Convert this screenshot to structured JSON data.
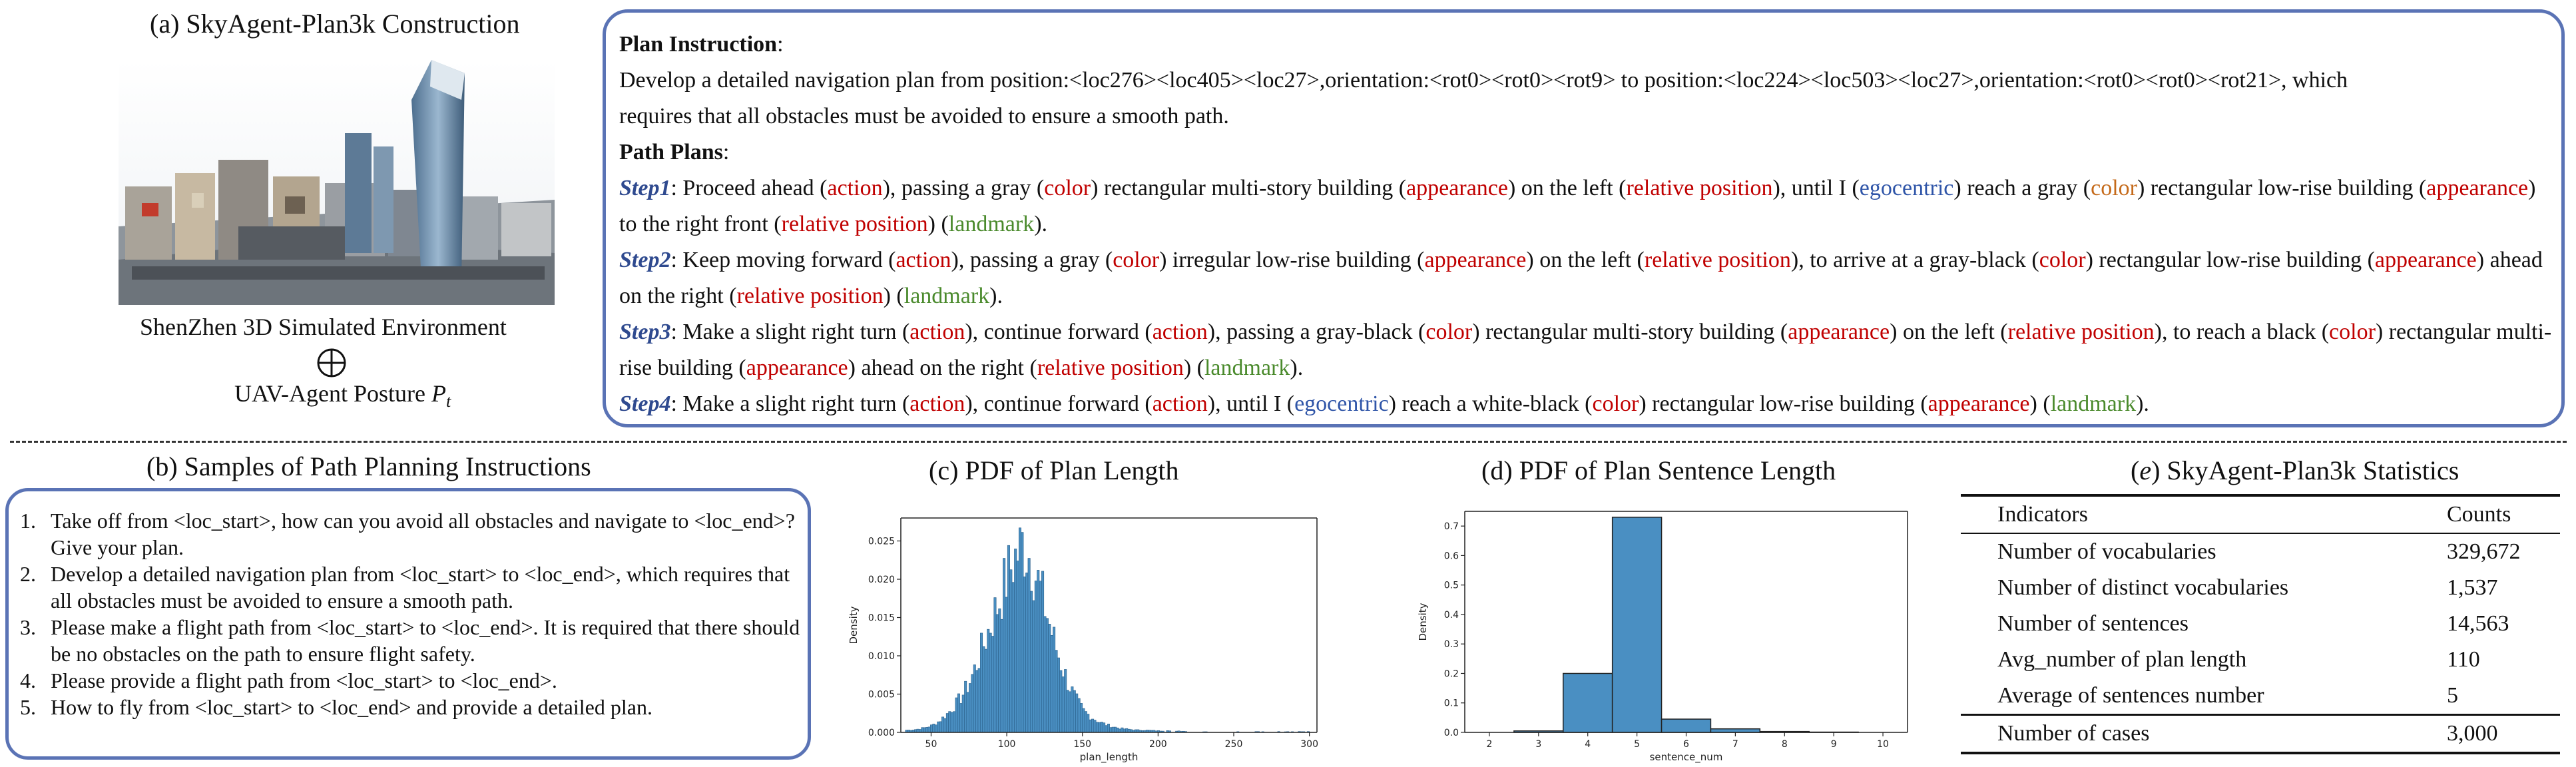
{
  "section_a": {
    "title": "(a) SkyAgent-Plan3k Construction",
    "env_label": "ShenZhen 3D Simulated Environment",
    "posture_label": "UAV-Agent Posture ",
    "posture_symbol": "P",
    "posture_subscript": "t"
  },
  "plan": {
    "instruction_heading": "Plan Instruction",
    "instruction_colon": ":",
    "instruction_line1": "Develop a detailed navigation plan from position:<loc276><loc405><loc27>,orientation:<rot0><rot0><rot9> to position:<loc224><loc503><loc27>,orientation:<rot0><rot0><rot21>, which",
    "instruction_line2": "requires that all obstacles must be avoided to ensure a smooth path.",
    "plans_heading": "Path Plans",
    "plans_colon": ":",
    "steps": [
      {
        "label": "Step1",
        "segments": [
          {
            "t": ": Proceed ahead (",
            "c": ""
          },
          {
            "t": "action",
            "c": "red"
          },
          {
            "t": "), passing a gray (",
            "c": ""
          },
          {
            "t": "color",
            "c": "red"
          },
          {
            "t": ") rectangular multi-story building (",
            "c": ""
          },
          {
            "t": "appearance",
            "c": "red"
          },
          {
            "t": ") on the left (",
            "c": ""
          },
          {
            "t": "relative position",
            "c": "red"
          },
          {
            "t": "), until I (",
            "c": ""
          },
          {
            "t": "egocentric",
            "c": "blue"
          },
          {
            "t": ") reach a gray (",
            "c": ""
          },
          {
            "t": "color",
            "c": "orange"
          },
          {
            "t": ") rectangular low-rise building (",
            "c": ""
          },
          {
            "t": "appearance",
            "c": "red"
          },
          {
            "t": ") to the right front (",
            "c": ""
          },
          {
            "t": "relative position",
            "c": "red"
          },
          {
            "t": ") (",
            "c": ""
          },
          {
            "t": "landmark",
            "c": "green"
          },
          {
            "t": ").",
            "c": ""
          }
        ]
      },
      {
        "label": "Step2",
        "segments": [
          {
            "t": ": Keep moving forward (",
            "c": ""
          },
          {
            "t": "action",
            "c": "red"
          },
          {
            "t": "), passing a gray (",
            "c": ""
          },
          {
            "t": "color",
            "c": "red"
          },
          {
            "t": ") irregular low-rise building (",
            "c": ""
          },
          {
            "t": "appearance",
            "c": "red"
          },
          {
            "t": ") on the left (",
            "c": ""
          },
          {
            "t": "relative position",
            "c": "red"
          },
          {
            "t": "), to arrive at a gray-black (",
            "c": ""
          },
          {
            "t": "color",
            "c": "red"
          },
          {
            "t": ") rectangular low-rise building (",
            "c": ""
          },
          {
            "t": "appearance",
            "c": "red"
          },
          {
            "t": ") ahead on the right (",
            "c": ""
          },
          {
            "t": "relative position",
            "c": "red"
          },
          {
            "t": ") (",
            "c": ""
          },
          {
            "t": "landmark",
            "c": "green"
          },
          {
            "t": ").",
            "c": ""
          }
        ]
      },
      {
        "label": "Step3",
        "segments": [
          {
            "t": ": Make a slight right turn (",
            "c": ""
          },
          {
            "t": "action",
            "c": "red"
          },
          {
            "t": "), continue forward (",
            "c": ""
          },
          {
            "t": "action",
            "c": "red"
          },
          {
            "t": "), passing a gray-black (",
            "c": ""
          },
          {
            "t": "color",
            "c": "red"
          },
          {
            "t": ") rectangular multi-story building (",
            "c": ""
          },
          {
            "t": "appearance",
            "c": "red"
          },
          {
            "t": ") on the left (",
            "c": ""
          },
          {
            "t": "relative position",
            "c": "red"
          },
          {
            "t": "), to reach a black (",
            "c": ""
          },
          {
            "t": "color",
            "c": "red"
          },
          {
            "t": ") rectangular multi-rise building (",
            "c": ""
          },
          {
            "t": "appearance",
            "c": "red"
          },
          {
            "t": ") ahead on the right (",
            "c": ""
          },
          {
            "t": "relative position",
            "c": "red"
          },
          {
            "t": ") (",
            "c": ""
          },
          {
            "t": "landmark",
            "c": "green"
          },
          {
            "t": ").",
            "c": ""
          }
        ]
      },
      {
        "label": "Step4",
        "segments": [
          {
            "t": ": Make a slight right turn (",
            "c": ""
          },
          {
            "t": "action",
            "c": "red"
          },
          {
            "t": "), continue forward (",
            "c": ""
          },
          {
            "t": "action",
            "c": "red"
          },
          {
            "t": "), until I (",
            "c": ""
          },
          {
            "t": "egocentric",
            "c": "blue"
          },
          {
            "t": ") reach a white-black (",
            "c": ""
          },
          {
            "t": "color",
            "c": "red"
          },
          {
            "t": ") rectangular low-rise building (",
            "c": ""
          },
          {
            "t": "appearance",
            "c": "red"
          },
          {
            "t": ") (",
            "c": ""
          },
          {
            "t": "landmark",
            "c": "green"
          },
          {
            "t": ").",
            "c": ""
          }
        ]
      }
    ]
  },
  "section_b": {
    "title": "(b) Samples of Path Planning Instructions",
    "items": [
      "Take off from <loc_start>, how can you avoid all obstacles and navigate to <loc_end>? Give your plan.",
      "Develop a detailed navigation plan from <loc_start> to <loc_end>, which requires that all obstacles must be avoided to ensure a smooth path.",
      "Please make a flight path from <loc_start> to <loc_end>. It is required that there should be no obstacles on the path to ensure flight safety.",
      "Please provide a flight path from <loc_start> to <loc_end>.",
      "How to fly from <loc_start> to <loc_end> and provide a detailed plan."
    ],
    "numbers": [
      "1.",
      "2.",
      "3.",
      "4.",
      "5."
    ]
  },
  "section_c": {
    "title": "(c) PDF of Plan Length"
  },
  "section_d": {
    "title": "(d) PDF of Plan Sentence Length"
  },
  "section_e": {
    "title_prefix": "(",
    "title_letter": "e",
    "title_rest": ") SkyAgent-Plan3k Statistics",
    "header": [
      "Indicators",
      "Counts"
    ],
    "rows": [
      [
        "Number of vocabularies",
        "329,672"
      ],
      [
        "Number of distinct vocabularies",
        "1,537"
      ],
      [
        "Number of sentences",
        "14,563"
      ],
      [
        "Avg_number of plan length",
        "110"
      ],
      [
        "Average of sentences number",
        "5"
      ]
    ],
    "last_row": [
      "Number of cases",
      "3,000"
    ]
  },
  "colors": {
    "box_border": "#5a73b5",
    "bar_fill": "#4a8fc2",
    "bar_edge": "#2a5f8a",
    "annotation_red": "#c00000",
    "annotation_blue": "#2f55a8",
    "annotation_green": "#4a8a2c",
    "annotation_orange": "#c56a1a"
  },
  "chart_data": [
    {
      "type": "bar",
      "title": "(c) PDF of Plan Length",
      "xlabel": "plan_length",
      "ylabel": "Density",
      "xlim": [
        30,
        305
      ],
      "ylim": [
        0,
        0.028
      ],
      "xticks": [
        "50",
        "100",
        "150",
        "200",
        "250",
        "300"
      ],
      "yticks": [
        "0.000",
        "0.005",
        "0.010",
        "0.015",
        "0.020",
        "0.025"
      ],
      "bin_width": 1.5,
      "x": [
        35,
        40,
        45,
        50,
        55,
        60,
        65,
        70,
        75,
        80,
        85,
        90,
        95,
        100,
        105,
        110,
        115,
        120,
        125,
        130,
        135,
        140,
        145,
        150,
        155,
        160,
        165,
        170,
        175,
        180,
        185,
        190,
        200,
        210,
        220,
        230,
        250,
        270,
        290,
        300
      ],
      "values": [
        0.0003,
        0.0004,
        0.0006,
        0.0009,
        0.0015,
        0.0024,
        0.0035,
        0.0048,
        0.0066,
        0.0092,
        0.012,
        0.0148,
        0.0175,
        0.0205,
        0.0228,
        0.0245,
        0.0228,
        0.0195,
        0.016,
        0.0122,
        0.009,
        0.0063,
        0.0043,
        0.0028,
        0.002,
        0.0014,
        0.001,
        0.0007,
        0.0005,
        0.0004,
        0.0003,
        0.0003,
        0.0002,
        0.0002,
        0.0001,
        0.0001,
        0.0001,
        0.0001,
        0.0001,
        0.0001
      ]
    },
    {
      "type": "bar",
      "title": "(d) PDF of Plan Sentence Length",
      "xlabel": "sentence_num",
      "ylabel": "Density",
      "xlim": [
        1.5,
        10.5
      ],
      "ylim": [
        0,
        0.75
      ],
      "xticks": [
        "2",
        "3",
        "4",
        "5",
        "6",
        "7",
        "8",
        "9",
        "10"
      ],
      "yticks": [
        "0.0",
        "0.1",
        "0.2",
        "0.3",
        "0.4",
        "0.5",
        "0.6",
        "0.7"
      ],
      "categories": [
        "3",
        "4",
        "5",
        "6",
        "7",
        "8",
        "9"
      ],
      "values": [
        0.005,
        0.2,
        0.73,
        0.045,
        0.012,
        0.003,
        0.001
      ]
    }
  ]
}
